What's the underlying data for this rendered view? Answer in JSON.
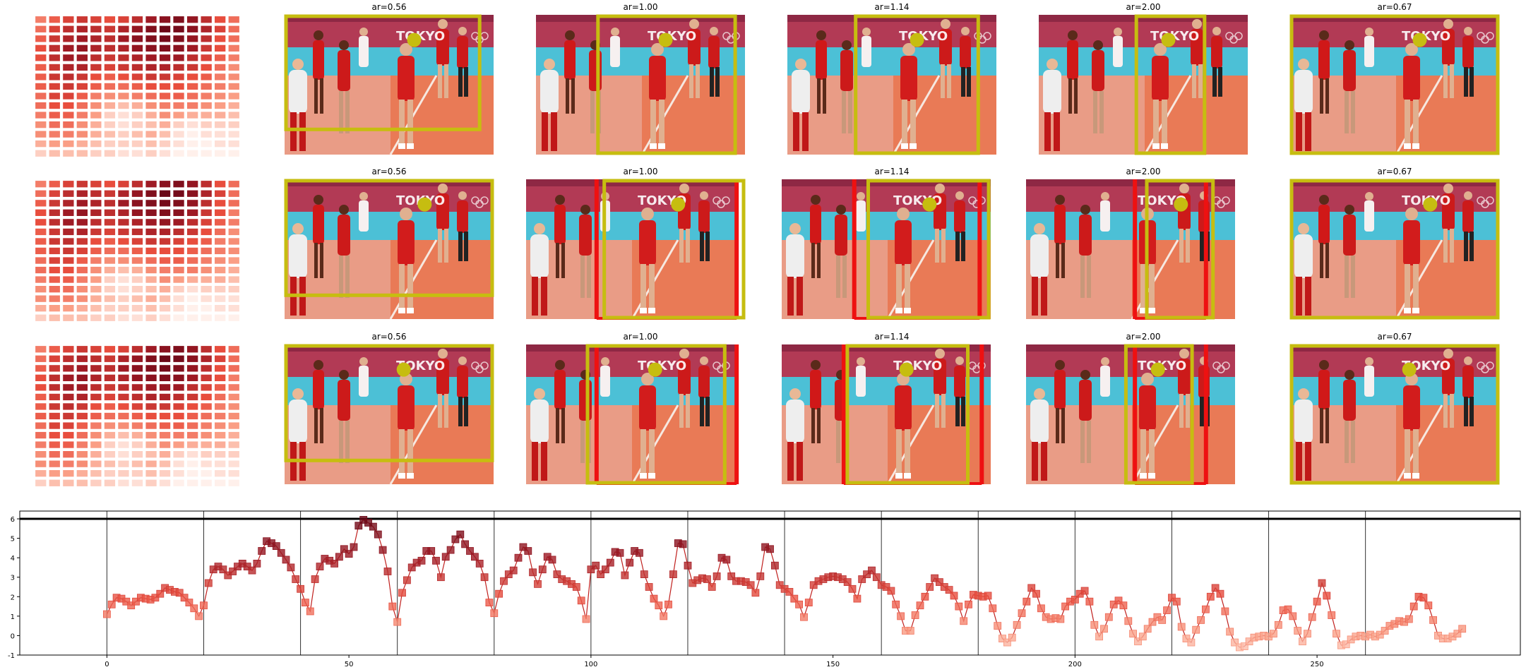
{
  "colors": {
    "crop_box": "#c6bd10",
    "alt_box": "#ee1111",
    "heat_low": "#fff0ea",
    "heat_high": "#7a0c18",
    "court_orange": "#ee6a3c",
    "court_cyan": "#4cc0d6",
    "banner": "#b23a55",
    "axis": "#000000"
  },
  "icons": [
    "saliency-heatmap",
    "volleyball-photo",
    "target-dot"
  ],
  "panel_titles": [
    [
      "ar=0.56",
      "ar=1.00",
      "ar=1.14",
      "ar=2.00",
      "ar=0.67"
    ],
    [
      "ar=0.56",
      "ar=1.00",
      "ar=1.14",
      "ar=2.00",
      "ar=0.67"
    ],
    [
      "ar=0.56",
      "ar=1.00",
      "ar=1.14",
      "ar=2.00",
      "ar=0.67"
    ]
  ],
  "chart_data": [
    {
      "type": "heatmap",
      "title": "",
      "rows": 15,
      "cols": 15,
      "values": [
        [
          0.35,
          0.45,
          0.55,
          0.6,
          0.55,
          0.5,
          0.55,
          0.65,
          0.75,
          0.85,
          0.9,
          0.8,
          0.65,
          0.5,
          0.4
        ],
        [
          0.4,
          0.55,
          0.65,
          0.7,
          0.65,
          0.6,
          0.7,
          0.8,
          0.9,
          1.0,
          0.95,
          0.85,
          0.7,
          0.55,
          0.4
        ],
        [
          0.45,
          0.6,
          0.7,
          0.75,
          0.7,
          0.65,
          0.75,
          0.85,
          0.9,
          0.95,
          0.9,
          0.8,
          0.65,
          0.5,
          0.4
        ],
        [
          0.5,
          0.65,
          0.75,
          0.8,
          0.7,
          0.65,
          0.7,
          0.8,
          0.85,
          0.9,
          0.85,
          0.75,
          0.6,
          0.5,
          0.35
        ],
        [
          0.5,
          0.65,
          0.75,
          0.75,
          0.65,
          0.6,
          0.65,
          0.7,
          0.75,
          0.8,
          0.75,
          0.65,
          0.55,
          0.45,
          0.35
        ],
        [
          0.45,
          0.6,
          0.7,
          0.7,
          0.6,
          0.55,
          0.6,
          0.65,
          0.7,
          0.7,
          0.65,
          0.6,
          0.5,
          0.4,
          0.3
        ],
        [
          0.45,
          0.6,
          0.65,
          0.6,
          0.5,
          0.45,
          0.5,
          0.55,
          0.6,
          0.6,
          0.55,
          0.5,
          0.45,
          0.35,
          0.3
        ],
        [
          0.45,
          0.55,
          0.6,
          0.55,
          0.45,
          0.4,
          0.4,
          0.45,
          0.5,
          0.5,
          0.5,
          0.45,
          0.4,
          0.35,
          0.3
        ],
        [
          0.4,
          0.55,
          0.55,
          0.45,
          0.35,
          0.3,
          0.3,
          0.35,
          0.4,
          0.45,
          0.45,
          0.4,
          0.35,
          0.3,
          0.25
        ],
        [
          0.4,
          0.5,
          0.5,
          0.4,
          0.3,
          0.2,
          0.15,
          0.2,
          0.3,
          0.35,
          0.35,
          0.35,
          0.3,
          0.25,
          0.2
        ],
        [
          0.35,
          0.45,
          0.45,
          0.35,
          0.25,
          0.1,
          0.05,
          0.1,
          0.2,
          0.3,
          0.25,
          0.2,
          0.2,
          0.2,
          0.15
        ],
        [
          0.3,
          0.4,
          0.4,
          0.3,
          0.2,
          0.1,
          0.05,
          0.1,
          0.15,
          0.2,
          0.1,
          0.05,
          0.1,
          0.1,
          0.1
        ],
        [
          0.3,
          0.35,
          0.35,
          0.3,
          0.2,
          0.15,
          0.1,
          0.15,
          0.2,
          0.15,
          0.05,
          0.0,
          0.05,
          0.05,
          0.05
        ],
        [
          0.2,
          0.25,
          0.25,
          0.2,
          0.15,
          0.1,
          0.1,
          0.1,
          0.15,
          0.1,
          0.05,
          0.0,
          0.0,
          0.05,
          0.05
        ],
        [
          0.1,
          0.15,
          0.15,
          0.15,
          0.1,
          0.1,
          0.05,
          0.05,
          0.1,
          0.05,
          0.0,
          0.0,
          0.0,
          0.0,
          0.0
        ]
      ]
    },
    {
      "type": "line",
      "title": "",
      "xlabel": "",
      "ylabel": "",
      "xlim": [
        -18,
        292
      ],
      "ylim": [
        -1,
        6.4
      ],
      "xticks": [
        0,
        50,
        100,
        150,
        200,
        250
      ],
      "yticks": [
        -1,
        0,
        1,
        2,
        3,
        4,
        5,
        6
      ],
      "hlines": [
        6
      ],
      "vlines": [
        0,
        20,
        40,
        60,
        80,
        100,
        120,
        140,
        160,
        180,
        200,
        220,
        240,
        260
      ],
      "grid": false,
      "legend": "none",
      "series": [
        {
          "x": [
            0,
            1,
            2,
            3,
            4,
            5,
            6,
            7,
            8,
            9,
            10,
            11,
            12,
            13,
            14,
            15,
            16,
            17,
            18,
            19,
            20,
            21,
            22,
            23,
            24,
            25,
            26,
            27,
            28,
            29,
            30,
            31,
            32,
            33,
            34,
            35,
            36,
            37,
            38,
            39,
            40,
            41,
            42,
            43,
            44,
            45,
            46,
            47,
            48,
            49,
            50,
            51,
            52,
            53,
            54,
            55,
            56,
            57,
            58,
            59,
            60,
            61,
            62,
            63,
            64,
            65,
            66,
            67,
            68,
            69,
            70,
            71,
            72,
            73,
            74,
            75,
            76,
            77,
            78,
            79,
            80,
            81,
            82,
            83,
            84,
            85,
            86,
            87,
            88,
            89,
            90,
            91,
            92,
            93,
            94,
            95,
            96,
            97,
            98,
            99,
            100,
            101,
            102,
            103,
            104,
            105,
            106,
            107,
            108,
            109,
            110,
            111,
            112,
            113,
            114,
            115,
            116,
            117,
            118,
            119,
            120,
            121,
            122,
            123,
            124,
            125,
            126,
            127,
            128,
            129,
            130,
            131,
            132,
            133,
            134,
            135,
            136,
            137,
            138,
            139,
            140,
            141,
            142,
            143,
            144,
            145,
            146,
            147,
            148,
            149,
            150,
            151,
            152,
            153,
            154,
            155,
            156,
            157,
            158,
            159,
            160,
            161,
            162,
            163,
            164,
            165,
            166,
            167,
            168,
            169,
            170,
            171,
            172,
            173,
            174,
            175,
            176,
            177,
            178,
            179,
            180,
            181,
            182,
            183,
            184,
            185,
            186,
            187,
            188,
            189,
            190,
            191,
            192,
            193,
            194,
            195,
            196,
            197,
            198,
            199,
            200,
            201,
            202,
            203,
            204,
            205,
            206,
            207,
            208,
            209,
            210,
            211,
            212,
            213,
            214,
            215,
            216,
            217,
            218,
            219,
            220,
            221,
            222,
            223,
            224,
            225,
            226,
            227,
            228,
            229,
            230,
            231,
            232,
            233,
            234,
            235,
            236,
            237,
            238,
            239,
            240,
            241,
            242,
            243,
            244,
            245,
            246,
            247,
            248,
            249,
            250,
            251,
            252,
            253,
            254,
            255,
            256,
            257,
            258,
            259,
            260,
            261,
            262,
            263,
            264,
            265,
            266,
            267,
            268,
            269,
            270,
            271,
            272,
            273,
            274,
            275,
            276,
            277,
            278,
            279,
            280
          ],
          "y": [
            1.1,
            1.6,
            1.95,
            1.9,
            1.75,
            1.55,
            1.75,
            1.95,
            1.9,
            1.85,
            1.95,
            2.15,
            2.45,
            2.35,
            2.25,
            2.2,
            1.95,
            1.7,
            1.4,
            1.0,
            1.55,
            2.7,
            3.4,
            3.55,
            3.4,
            3.1,
            3.3,
            3.55,
            3.7,
            3.55,
            3.35,
            3.7,
            4.35,
            4.85,
            4.75,
            4.6,
            4.25,
            3.9,
            3.5,
            2.9,
            2.4,
            1.7,
            1.25,
            2.9,
            3.55,
            3.95,
            3.85,
            3.7,
            4.05,
            4.45,
            4.2,
            4.55,
            5.65,
            5.95,
            5.8,
            5.6,
            5.2,
            4.4,
            3.3,
            1.5,
            0.7,
            2.2,
            2.85,
            3.5,
            3.75,
            3.85,
            4.35,
            4.35,
            3.85,
            3.0,
            4.05,
            4.4,
            4.95,
            5.2,
            4.7,
            4.35,
            4.05,
            3.7,
            3.0,
            1.7,
            1.15,
            2.15,
            2.8,
            3.15,
            3.35,
            4.0,
            4.55,
            4.35,
            3.25,
            2.65,
            3.4,
            4.05,
            3.9,
            3.15,
            2.9,
            2.8,
            2.65,
            2.5,
            1.8,
            0.85,
            3.4,
            3.6,
            3.15,
            3.4,
            3.75,
            4.3,
            4.25,
            3.1,
            3.75,
            4.35,
            4.25,
            3.15,
            2.5,
            1.9,
            1.55,
            1.0,
            1.6,
            3.15,
            4.75,
            4.7,
            3.6,
            2.7,
            2.85,
            2.95,
            2.9,
            2.5,
            3.05,
            4.0,
            3.9,
            3.05,
            2.8,
            2.8,
            2.75,
            2.6,
            2.2,
            3.05,
            4.55,
            4.45,
            3.6,
            2.6,
            2.4,
            2.25,
            1.9,
            1.6,
            0.95,
            1.7,
            2.6,
            2.8,
            2.9,
            3.0,
            3.05,
            3.0,
            2.9,
            2.75,
            2.4,
            1.9,
            2.9,
            3.15,
            3.35,
            3.0,
            2.6,
            2.5,
            2.3,
            1.6,
            1.0,
            0.25,
            0.25,
            1.05,
            1.55,
            2.0,
            2.5,
            2.95,
            2.75,
            2.5,
            2.35,
            2.05,
            1.5,
            0.75,
            1.6,
            2.1,
            2.05,
            2.0,
            2.05,
            1.4,
            0.5,
            -0.15,
            -0.35,
            -0.1,
            0.55,
            1.15,
            1.75,
            2.45,
            2.15,
            1.4,
            0.95,
            0.85,
            0.9,
            0.85,
            1.5,
            1.75,
            1.85,
            2.15,
            2.3,
            1.75,
            0.55,
            -0.05,
            0.35,
            0.95,
            1.6,
            1.8,
            1.55,
            0.75,
            0.1,
            -0.3,
            -0.05,
            0.35,
            0.7,
            0.95,
            0.8,
            1.3,
            1.95,
            1.75,
            0.45,
            -0.15,
            -0.35,
            0.3,
            0.8,
            1.35,
            2.0,
            2.45,
            2.15,
            1.25,
            0.2,
            -0.35,
            -0.6,
            -0.55,
            -0.3,
            -0.1,
            -0.05,
            0.0,
            -0.05,
            0.1,
            0.55,
            1.3,
            1.35,
            1.0,
            0.25,
            -0.3,
            0.1,
            0.95,
            1.75,
            2.7,
            2.05,
            1.05,
            0.1,
            -0.5,
            -0.45,
            -0.2,
            -0.05,
            0.0,
            -0.05,
            0.05,
            -0.05,
            0.05,
            0.25,
            0.5,
            0.6,
            0.75,
            0.7,
            0.85,
            1.5,
            2.0,
            1.95,
            1.55,
            0.8,
            0.0,
            -0.15,
            -0.15,
            -0.05,
            0.1,
            0.35
          ]
        }
      ]
    }
  ]
}
